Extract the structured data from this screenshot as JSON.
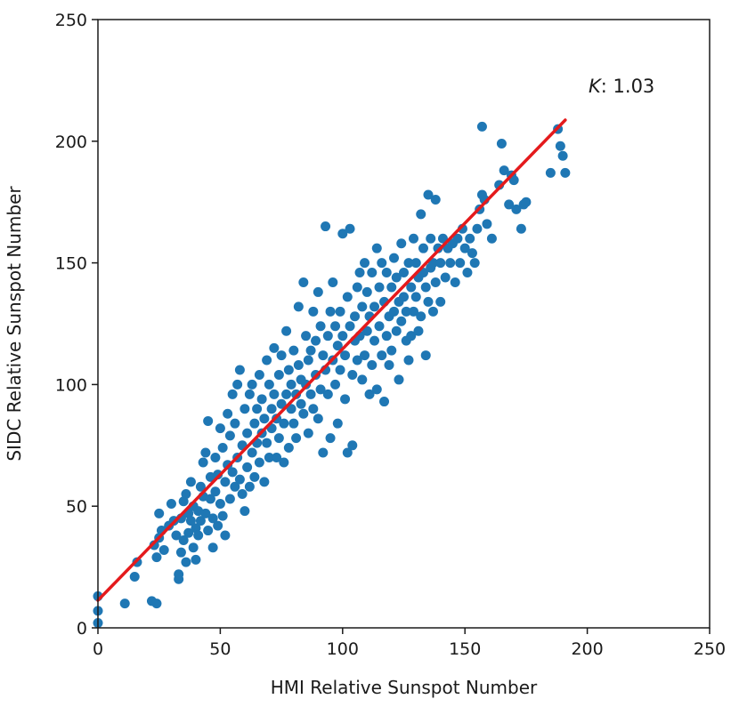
{
  "chart_data": {
    "type": "scatter",
    "title": "",
    "xlabel": "HMI Relative Sunspot Number",
    "ylabel": "SIDC Relative Sunspot Number",
    "xlim": [
      0,
      250
    ],
    "ylim": [
      0,
      250
    ],
    "xticks": [
      0,
      50,
      100,
      150,
      200,
      250
    ],
    "yticks": [
      0,
      50,
      100,
      150,
      200,
      250
    ],
    "grid": false,
    "legend": "none",
    "point_color": "#1f77b4",
    "fit_color": "#e41a1c",
    "annotation": {
      "symbol": "K",
      "text": ": 1.03"
    },
    "fit_line": {
      "x": [
        0,
        191
      ],
      "y": [
        11.3,
        208.7
      ]
    },
    "points": [
      [
        0,
        2
      ],
      [
        0,
        7
      ],
      [
        0,
        13
      ],
      [
        11,
        10
      ],
      [
        15,
        21
      ],
      [
        16,
        27
      ],
      [
        22,
        11
      ],
      [
        23,
        34
      ],
      [
        24,
        10
      ],
      [
        24,
        29
      ],
      [
        25,
        37
      ],
      [
        25,
        47
      ],
      [
        26,
        40
      ],
      [
        27,
        32
      ],
      [
        29,
        42
      ],
      [
        30,
        51
      ],
      [
        31,
        44
      ],
      [
        32,
        38
      ],
      [
        33,
        20
      ],
      [
        33,
        22
      ],
      [
        34,
        31
      ],
      [
        34,
        45
      ],
      [
        35,
        52
      ],
      [
        35,
        36
      ],
      [
        36,
        55
      ],
      [
        36,
        27
      ],
      [
        37,
        39
      ],
      [
        37,
        47
      ],
      [
        38,
        60
      ],
      [
        38,
        44
      ],
      [
        39,
        33
      ],
      [
        39,
        50
      ],
      [
        40,
        28
      ],
      [
        40,
        41
      ],
      [
        41,
        38
      ],
      [
        41,
        48
      ],
      [
        42,
        58
      ],
      [
        42,
        44
      ],
      [
        43,
        68
      ],
      [
        43,
        54
      ],
      [
        44,
        72
      ],
      [
        44,
        47
      ],
      [
        45,
        40
      ],
      [
        45,
        85
      ],
      [
        46,
        62
      ],
      [
        46,
        53
      ],
      [
        47,
        45
      ],
      [
        47,
        33
      ],
      [
        48,
        56
      ],
      [
        48,
        70
      ],
      [
        49,
        42
      ],
      [
        49,
        63
      ],
      [
        50,
        82
      ],
      [
        50,
        51
      ],
      [
        51,
        74
      ],
      [
        51,
        46
      ],
      [
        52,
        60
      ],
      [
        52,
        38
      ],
      [
        53,
        88
      ],
      [
        53,
        67
      ],
      [
        54,
        53
      ],
      [
        54,
        79
      ],
      [
        55,
        96
      ],
      [
        55,
        64
      ],
      [
        56,
        58
      ],
      [
        56,
        84
      ],
      [
        57,
        100
      ],
      [
        57,
        70
      ],
      [
        58,
        106
      ],
      [
        58,
        61
      ],
      [
        59,
        75
      ],
      [
        59,
        55
      ],
      [
        60,
        90
      ],
      [
        60,
        48
      ],
      [
        61,
        66
      ],
      [
        61,
        80
      ],
      [
        62,
        96
      ],
      [
        62,
        58
      ],
      [
        63,
        72
      ],
      [
        63,
        100
      ],
      [
        64,
        84
      ],
      [
        64,
        62
      ],
      [
        65,
        90
      ],
      [
        65,
        76
      ],
      [
        66,
        68
      ],
      [
        66,
        104
      ],
      [
        67,
        80
      ],
      [
        67,
        94
      ],
      [
        68,
        60
      ],
      [
        68,
        86
      ],
      [
        69,
        110
      ],
      [
        69,
        76
      ],
      [
        70,
        100
      ],
      [
        70,
        70
      ],
      [
        71,
        90
      ],
      [
        71,
        82
      ],
      [
        72,
        115
      ],
      [
        72,
        96
      ],
      [
        73,
        70
      ],
      [
        73,
        86
      ],
      [
        74,
        104
      ],
      [
        74,
        78
      ],
      [
        75,
        92
      ],
      [
        75,
        112
      ],
      [
        76,
        84
      ],
      [
        76,
        68
      ],
      [
        77,
        122
      ],
      [
        77,
        96
      ],
      [
        78,
        106
      ],
      [
        78,
        74
      ],
      [
        79,
        90
      ],
      [
        79,
        100
      ],
      [
        80,
        84
      ],
      [
        80,
        114
      ],
      [
        81,
        96
      ],
      [
        81,
        78
      ],
      [
        82,
        108
      ],
      [
        82,
        132
      ],
      [
        83,
        92
      ],
      [
        83,
        102
      ],
      [
        84,
        142
      ],
      [
        84,
        88
      ],
      [
        85,
        120
      ],
      [
        85,
        100
      ],
      [
        86,
        110
      ],
      [
        86,
        80
      ],
      [
        87,
        96
      ],
      [
        87,
        114
      ],
      [
        88,
        130
      ],
      [
        88,
        90
      ],
      [
        89,
        104
      ],
      [
        89,
        118
      ],
      [
        90,
        86
      ],
      [
        90,
        138
      ],
      [
        91,
        124
      ],
      [
        91,
        98
      ],
      [
        92,
        112
      ],
      [
        92,
        72
      ],
      [
        93,
        165
      ],
      [
        93,
        106
      ],
      [
        94,
        120
      ],
      [
        94,
        96
      ],
      [
        95,
        130
      ],
      [
        95,
        78
      ],
      [
        96,
        110
      ],
      [
        96,
        142
      ],
      [
        97,
        124
      ],
      [
        97,
        100
      ],
      [
        98,
        116
      ],
      [
        98,
        84
      ],
      [
        99,
        130
      ],
      [
        99,
        106
      ],
      [
        100,
        162
      ],
      [
        100,
        120
      ],
      [
        101,
        94
      ],
      [
        101,
        112
      ],
      [
        102,
        136
      ],
      [
        102,
        72
      ],
      [
        103,
        124
      ],
      [
        103,
        164
      ],
      [
        104,
        104
      ],
      [
        104,
        75
      ],
      [
        105,
        128
      ],
      [
        105,
        118
      ],
      [
        106,
        110
      ],
      [
        106,
        140
      ],
      [
        107,
        120
      ],
      [
        107,
        146
      ],
      [
        108,
        132
      ],
      [
        108,
        102
      ],
      [
        109,
        150
      ],
      [
        109,
        112
      ],
      [
        110,
        138
      ],
      [
        110,
        122
      ],
      [
        111,
        128
      ],
      [
        111,
        96
      ],
      [
        112,
        146
      ],
      [
        112,
        108
      ],
      [
        113,
        132
      ],
      [
        113,
        118
      ],
      [
        114,
        156
      ],
      [
        114,
        98
      ],
      [
        115,
        140
      ],
      [
        115,
        124
      ],
      [
        116,
        112
      ],
      [
        116,
        150
      ],
      [
        117,
        134
      ],
      [
        117,
        93
      ],
      [
        118,
        146
      ],
      [
        118,
        120
      ],
      [
        119,
        128
      ],
      [
        119,
        108
      ],
      [
        120,
        140
      ],
      [
        120,
        114
      ],
      [
        121,
        152
      ],
      [
        121,
        130
      ],
      [
        122,
        144
      ],
      [
        122,
        122
      ],
      [
        123,
        134
      ],
      [
        123,
        102
      ],
      [
        124,
        158
      ],
      [
        124,
        126
      ],
      [
        125,
        146
      ],
      [
        125,
        136
      ],
      [
        126,
        130
      ],
      [
        126,
        118
      ],
      [
        127,
        150
      ],
      [
        127,
        110
      ],
      [
        128,
        140
      ],
      [
        128,
        120
      ],
      [
        129,
        130
      ],
      [
        129,
        160
      ],
      [
        130,
        150
      ],
      [
        130,
        136
      ],
      [
        131,
        144
      ],
      [
        131,
        122
      ],
      [
        132,
        170
      ],
      [
        132,
        128
      ],
      [
        133,
        156
      ],
      [
        133,
        146
      ],
      [
        134,
        140
      ],
      [
        134,
        112
      ],
      [
        135,
        178
      ],
      [
        135,
        134
      ],
      [
        136,
        148
      ],
      [
        136,
        160
      ],
      [
        137,
        130
      ],
      [
        137,
        150
      ],
      [
        138,
        176
      ],
      [
        138,
        142
      ],
      [
        139,
        156
      ],
      [
        140,
        150
      ],
      [
        140,
        134
      ],
      [
        141,
        160
      ],
      [
        142,
        144
      ],
      [
        143,
        156
      ],
      [
        144,
        150
      ],
      [
        145,
        158
      ],
      [
        146,
        142
      ],
      [
        147,
        160
      ],
      [
        148,
        150
      ],
      [
        149,
        164
      ],
      [
        150,
        156
      ],
      [
        151,
        146
      ],
      [
        152,
        160
      ],
      [
        153,
        154
      ],
      [
        154,
        150
      ],
      [
        155,
        164
      ],
      [
        156,
        172
      ],
      [
        157,
        206
      ],
      [
        157,
        178
      ],
      [
        158,
        176
      ],
      [
        159,
        166
      ],
      [
        161,
        160
      ],
      [
        164,
        182
      ],
      [
        165,
        199
      ],
      [
        166,
        188
      ],
      [
        168,
        174
      ],
      [
        169,
        186
      ],
      [
        170,
        184
      ],
      [
        171,
        172
      ],
      [
        173,
        164
      ],
      [
        174,
        174
      ],
      [
        175,
        175
      ],
      [
        185,
        187
      ],
      [
        188,
        205
      ],
      [
        189,
        198
      ],
      [
        190,
        194
      ],
      [
        191,
        187
      ]
    ]
  }
}
